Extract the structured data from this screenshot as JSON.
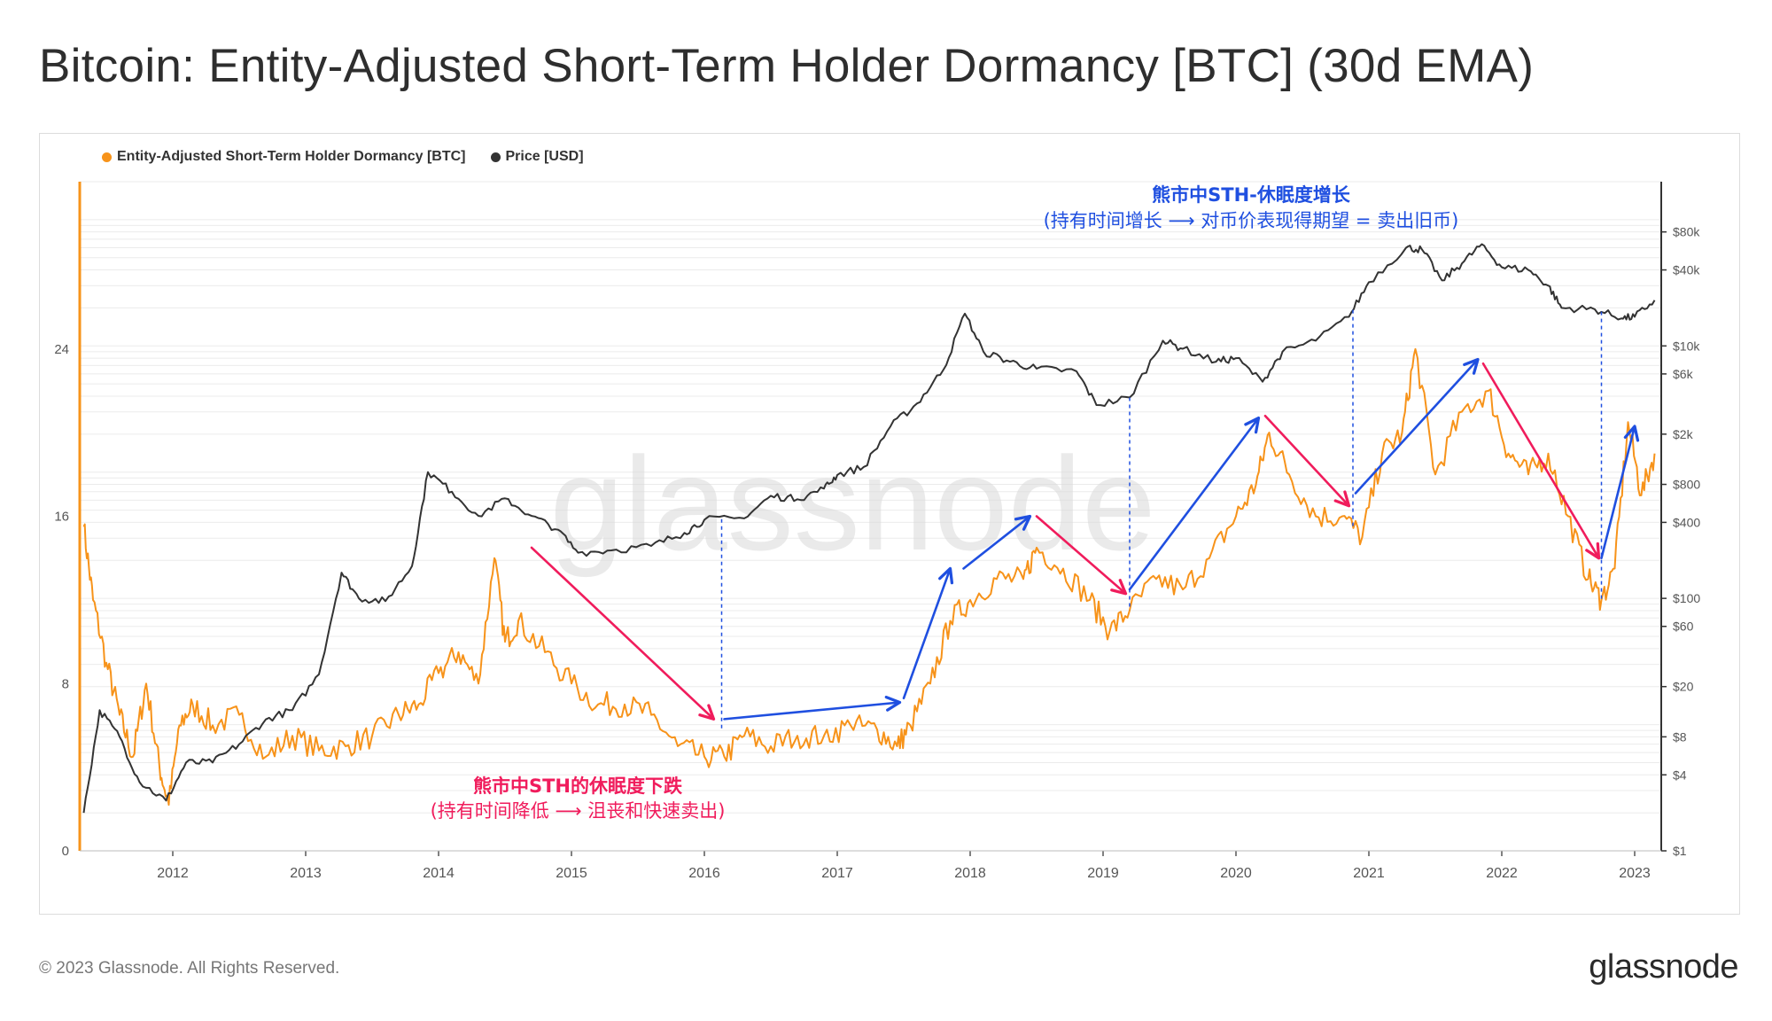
{
  "title": "Bitcoin: Entity-Adjusted Short-Term Holder Dormancy [BTC] (30d EMA)",
  "footer": "© 2023 Glassnode. All Rights Reserved.",
  "brand": "glassnode",
  "watermark": "glassnode",
  "colors": {
    "dormancy": "#f7931a",
    "price": "#333333",
    "up_arrow": "#1f4fe0",
    "down_arrow": "#f01c5c",
    "dashed": "#1f4fe0",
    "grid": "#ebebeb"
  },
  "chart_data": {
    "type": "line",
    "legend_position": "top-left",
    "series": [
      {
        "name": "Entity-Adjusted Short-Term Holder Dormancy [BTC]",
        "axis": "left",
        "points": [
          [
            2011.33,
            15.5
          ],
          [
            2011.4,
            12
          ],
          [
            2011.5,
            9
          ],
          [
            2011.6,
            6.5
          ],
          [
            2011.7,
            4.5
          ],
          [
            2011.8,
            8
          ],
          [
            2011.9,
            4
          ],
          [
            2011.97,
            2.2
          ],
          [
            2012.05,
            6
          ],
          [
            2012.15,
            7
          ],
          [
            2012.3,
            6
          ],
          [
            2012.5,
            6.5
          ],
          [
            2012.7,
            4.5
          ],
          [
            2012.9,
            5.5
          ],
          [
            2013.1,
            4.8
          ],
          [
            2013.3,
            5
          ],
          [
            2013.5,
            5.5
          ],
          [
            2013.7,
            6.5
          ],
          [
            2013.85,
            7
          ],
          [
            2014.0,
            8.5
          ],
          [
            2014.15,
            9.5
          ],
          [
            2014.3,
            8
          ],
          [
            2014.42,
            14
          ],
          [
            2014.5,
            10
          ],
          [
            2014.6,
            11
          ],
          [
            2014.8,
            9.5
          ],
          [
            2015.0,
            8
          ],
          [
            2015.2,
            7
          ],
          [
            2015.4,
            7
          ],
          [
            2015.6,
            6.5
          ],
          [
            2015.8,
            5
          ],
          [
            2016.0,
            4.5
          ],
          [
            2016.15,
            4.5
          ],
          [
            2016.3,
            5.5
          ],
          [
            2016.5,
            5
          ],
          [
            2016.7,
            5.5
          ],
          [
            2016.9,
            5.5
          ],
          [
            2017.1,
            6
          ],
          [
            2017.3,
            5.8
          ],
          [
            2017.45,
            5
          ],
          [
            2017.55,
            6
          ],
          [
            2017.7,
            8
          ],
          [
            2017.85,
            11
          ],
          [
            2018.0,
            12
          ],
          [
            2018.2,
            13
          ],
          [
            2018.4,
            13
          ],
          [
            2018.5,
            14.5
          ],
          [
            2018.7,
            13.5
          ],
          [
            2018.9,
            12
          ],
          [
            2019.05,
            10.5
          ],
          [
            2019.2,
            11.5
          ],
          [
            2019.4,
            13
          ],
          [
            2019.6,
            12.5
          ],
          [
            2019.8,
            14
          ],
          [
            2020.0,
            16
          ],
          [
            2020.15,
            17.5
          ],
          [
            2020.25,
            20
          ],
          [
            2020.4,
            18
          ],
          [
            2020.6,
            16
          ],
          [
            2020.8,
            16
          ],
          [
            2020.95,
            15
          ],
          [
            2021.1,
            19
          ],
          [
            2021.25,
            20
          ],
          [
            2021.35,
            24
          ],
          [
            2021.5,
            18
          ],
          [
            2021.7,
            21
          ],
          [
            2021.9,
            22
          ],
          [
            2022.05,
            19
          ],
          [
            2022.2,
            18
          ],
          [
            2022.35,
            19
          ],
          [
            2022.5,
            16
          ],
          [
            2022.65,
            13
          ],
          [
            2022.75,
            12
          ],
          [
            2022.85,
            13.5
          ],
          [
            2022.95,
            20.5
          ],
          [
            2023.05,
            17
          ],
          [
            2023.15,
            19
          ]
        ]
      },
      {
        "name": "Price [USD]",
        "axis": "right",
        "points": [
          [
            2011.33,
            2
          ],
          [
            2011.45,
            13
          ],
          [
            2011.6,
            8
          ],
          [
            2011.75,
            3.5
          ],
          [
            2011.95,
            2.5
          ],
          [
            2012.1,
            5
          ],
          [
            2012.3,
            5
          ],
          [
            2012.5,
            7
          ],
          [
            2012.7,
            11
          ],
          [
            2012.9,
            13
          ],
          [
            2013.1,
            25
          ],
          [
            2013.27,
            160
          ],
          [
            2013.4,
            100
          ],
          [
            2013.6,
            95
          ],
          [
            2013.8,
            180
          ],
          [
            2013.92,
            1000
          ],
          [
            2014.1,
            700
          ],
          [
            2014.3,
            450
          ],
          [
            2014.5,
            620
          ],
          [
            2014.7,
            450
          ],
          [
            2014.9,
            350
          ],
          [
            2015.05,
            230
          ],
          [
            2015.3,
            240
          ],
          [
            2015.6,
            260
          ],
          [
            2015.85,
            330
          ],
          [
            2016.0,
            420
          ],
          [
            2016.3,
            430
          ],
          [
            2016.5,
            650
          ],
          [
            2016.7,
            610
          ],
          [
            2016.9,
            740
          ],
          [
            2017.0,
            950
          ],
          [
            2017.2,
            1100
          ],
          [
            2017.4,
            2300
          ],
          [
            2017.6,
            3500
          ],
          [
            2017.8,
            6500
          ],
          [
            2017.96,
            18000
          ],
          [
            2018.1,
            9000
          ],
          [
            2018.3,
            7500
          ],
          [
            2018.5,
            6600
          ],
          [
            2018.8,
            6300
          ],
          [
            2018.95,
            3400
          ],
          [
            2019.2,
            3900
          ],
          [
            2019.45,
            11000
          ],
          [
            2019.6,
            9500
          ],
          [
            2019.85,
            7500
          ],
          [
            2020.0,
            8000
          ],
          [
            2020.2,
            5200
          ],
          [
            2020.35,
            9000
          ],
          [
            2020.6,
            11000
          ],
          [
            2020.85,
            17000
          ],
          [
            2021.0,
            32000
          ],
          [
            2021.28,
            60000
          ],
          [
            2021.4,
            58000
          ],
          [
            2021.55,
            33000
          ],
          [
            2021.7,
            45000
          ],
          [
            2021.85,
            64000
          ],
          [
            2022.0,
            42000
          ],
          [
            2022.2,
            40000
          ],
          [
            2022.35,
            30000
          ],
          [
            2022.45,
            20000
          ],
          [
            2022.7,
            19500
          ],
          [
            2022.9,
            16500
          ],
          [
            2023.0,
            17000
          ],
          [
            2023.15,
            23000
          ]
        ]
      }
    ],
    "left_axis": {
      "ticks": [
        0,
        8,
        16,
        24
      ],
      "range": [
        0,
        32
      ]
    },
    "right_axis": {
      "scale": "log",
      "range": [
        1,
        200000
      ],
      "ticks": [
        {
          "value": 1,
          "label": "$1"
        },
        {
          "value": 4,
          "label": "$4"
        },
        {
          "value": 8,
          "label": "$8"
        },
        {
          "value": 20,
          "label": "$20"
        },
        {
          "value": 60,
          "label": "$60"
        },
        {
          "value": 100,
          "label": "$100"
        },
        {
          "value": 400,
          "label": "$400"
        },
        {
          "value": 800,
          "label": "$800"
        },
        {
          "value": 2000,
          "label": "$2k"
        },
        {
          "value": 6000,
          "label": "$6k"
        },
        {
          "value": 10000,
          "label": "$10k"
        },
        {
          "value": 40000,
          "label": "$40k"
        },
        {
          "value": 80000,
          "label": "$80k"
        }
      ]
    },
    "x_axis": {
      "range": [
        2011.3,
        2023.2
      ],
      "ticks": [
        2012,
        2013,
        2014,
        2015,
        2016,
        2017,
        2018,
        2019,
        2020,
        2021,
        2022,
        2023
      ]
    },
    "annotations": [
      {
        "name": "bear-falling-title",
        "text": "熊市中STH的休眠度下跌",
        "position": "bottom-center",
        "color": "#f01c5c"
      },
      {
        "name": "bear-falling-subtitle",
        "text": "(持有时间降低 ⟶ 沮丧和快速卖出)",
        "position": "bottom-center",
        "color": "#f01c5c"
      },
      {
        "name": "bear-rising-title",
        "text": "熊市中STH-休眠度增长",
        "position": "top-center",
        "color": "#1f4fe0"
      },
      {
        "name": "bear-rising-subtitle",
        "text": "(持有时间增长 ⟶ 对币价表现得期望 = 卖出旧币)",
        "position": "top-center",
        "color": "#1f4fe0"
      }
    ],
    "trend_arrows": [
      {
        "direction": "down",
        "from": [
          2014.7,
          14.5
        ],
        "to": [
          2016.07,
          6.3
        ]
      },
      {
        "direction": "up",
        "from": [
          2016.15,
          6.3
        ],
        "to": [
          2017.47,
          7.1
        ]
      },
      {
        "direction": "up",
        "from": [
          2017.5,
          7.3
        ],
        "to": [
          2017.85,
          13.5
        ]
      },
      {
        "direction": "up",
        "from": [
          2017.95,
          13.5
        ],
        "to": [
          2018.45,
          16
        ]
      },
      {
        "direction": "down",
        "from": [
          2018.5,
          16
        ],
        "to": [
          2019.17,
          12.3
        ]
      },
      {
        "direction": "up",
        "from": [
          2019.2,
          12.5
        ],
        "to": [
          2020.17,
          20.7
        ]
      },
      {
        "direction": "down",
        "from": [
          2020.22,
          20.8
        ],
        "to": [
          2020.85,
          16.5
        ]
      },
      {
        "direction": "up",
        "from": [
          2020.9,
          17.1
        ],
        "to": [
          2021.82,
          23.5
        ]
      },
      {
        "direction": "down",
        "from": [
          2021.86,
          23.3
        ],
        "to": [
          2022.73,
          14
        ]
      },
      {
        "direction": "up",
        "from": [
          2022.75,
          14
        ],
        "to": [
          2023.0,
          20.3
        ]
      }
    ],
    "dashed_verticals": [
      2016.13,
      2019.2,
      2020.88,
      2022.75
    ]
  }
}
